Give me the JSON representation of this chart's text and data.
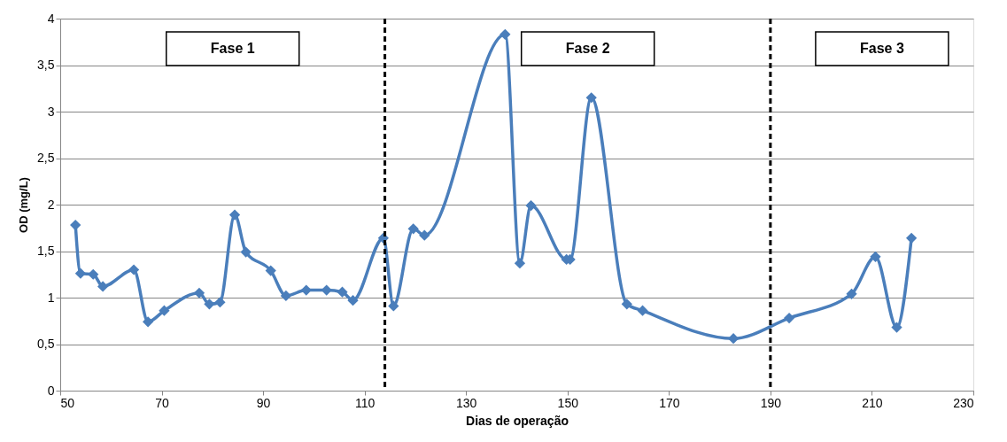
{
  "chart_data": {
    "type": "line",
    "xlabel": "Dias de operação",
    "ylabel": "OD (mg/L)",
    "x": [
      53,
      54,
      56.5,
      58.4,
      64.5,
      67.3,
      70.5,
      77.4,
      79.4,
      81.5,
      84.4,
      86.6,
      91.5,
      94.5,
      98.5,
      102.5,
      105.6,
      107.7,
      113.7,
      115.7,
      119.6,
      121.8,
      137.7,
      140.6,
      142.8,
      149.8,
      150.5,
      154.7,
      161.7,
      164.8,
      182.7,
      193.7,
      206,
      210.7,
      214.9,
      217.8
    ],
    "series": [
      {
        "color": "#4a7ebb",
        "values": [
          1.78,
          1.26,
          1.25,
          1.12,
          1.3,
          0.74,
          0.86,
          1.05,
          0.93,
          0.95,
          1.89,
          1.49,
          1.29,
          1.02,
          1.08,
          1.08,
          1.06,
          0.97,
          1.64,
          0.91,
          1.74,
          1.67,
          3.83,
          1.37,
          1.99,
          1.41,
          1.41,
          3.15,
          0.93,
          0.86,
          0.56,
          0.78,
          1.04,
          1.44,
          0.68,
          1.64
        ]
      }
    ],
    "xlim": [
      50,
      230
    ],
    "xticks": [
      50,
      70,
      90,
      110,
      130,
      150,
      170,
      190,
      210,
      230
    ],
    "ylim": [
      0,
      4
    ],
    "yticks": [
      0,
      {
        "value": 0.5,
        "label": "0,5"
      },
      1,
      {
        "value": 1.5,
        "label": "1,5"
      },
      2,
      {
        "value": 2.5,
        "label": "2,5"
      },
      3,
      {
        "value": 3.5,
        "label": "3,5"
      },
      4
    ],
    "ref_lines": [
      {
        "axis": "x",
        "value": 114,
        "color": "#000000",
        "line_style": "dashed"
      },
      {
        "axis": "x",
        "value": 190,
        "color": "#000000",
        "line_style": "dashed"
      }
    ],
    "annotations": [
      "Fase 1",
      "Fase 2",
      "Fase 3"
    ],
    "grid": "y",
    "marker": "diamond",
    "line_style": "solid"
  }
}
